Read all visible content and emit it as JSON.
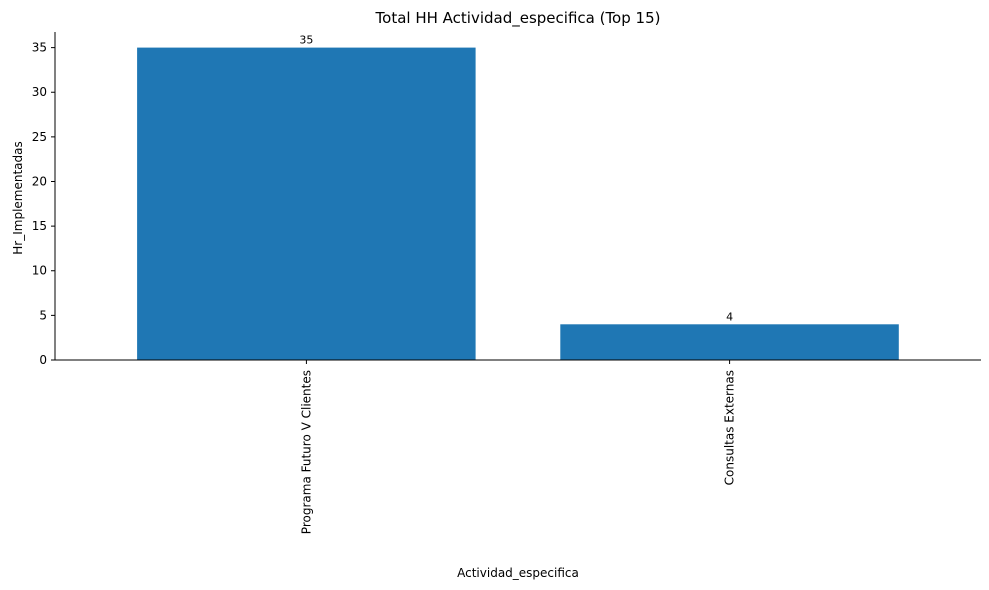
{
  "chart_data": {
    "type": "bar",
    "title": "Total HH Actividad_especifica (Top 15)",
    "xlabel": "Actividad_especifica",
    "ylabel": "Hr_Implementadas",
    "categories": [
      "Programa Futuro V Clientes",
      "Consultas Externas"
    ],
    "values": [
      35,
      4
    ],
    "data_labels": [
      "35",
      "4"
    ],
    "ylim": [
      0,
      36.75
    ],
    "yticks": [
      0,
      5,
      10,
      15,
      20,
      25,
      30,
      35
    ],
    "ytick_labels": [
      "0",
      "5",
      "10",
      "15",
      "20",
      "25",
      "30",
      "35"
    ],
    "bar_color": "#1f77b4",
    "grid": false,
    "spines": [
      "left",
      "bottom"
    ]
  }
}
